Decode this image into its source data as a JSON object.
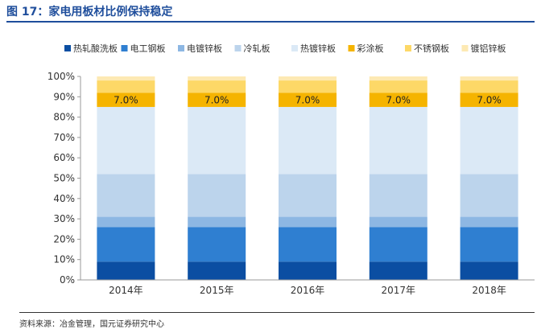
{
  "figure": {
    "title": "图 17：家电用板材比例保持稳定",
    "source": "资料来源：冶金管理，国元证券研究中心"
  },
  "chart_data": {
    "type": "bar",
    "stacked": true,
    "percent_stacked": true,
    "categories": [
      "2014年",
      "2015年",
      "2016年",
      "2017年",
      "2018年"
    ],
    "ylim": [
      0,
      100
    ],
    "yticks": [
      "0%",
      "10%",
      "20%",
      "30%",
      "40%",
      "50%",
      "60%",
      "70%",
      "80%",
      "90%",
      "100%"
    ],
    "legend_position": "top",
    "grid": false,
    "series": [
      {
        "name": "热轧酸洗板",
        "color": "#0b4ea2",
        "values": [
          9,
          9,
          9,
          9,
          9
        ]
      },
      {
        "name": "电工钢板",
        "color": "#2f7fd1",
        "values": [
          17,
          17,
          17,
          17,
          17
        ]
      },
      {
        "name": "电镀锌板",
        "color": "#8db7e3",
        "values": [
          5,
          5,
          5,
          5,
          5
        ]
      },
      {
        "name": "冷轧板",
        "color": "#bcd4ec",
        "values": [
          21,
          21,
          21,
          21,
          21
        ]
      },
      {
        "name": "热镀锌板",
        "color": "#dbe9f6",
        "values": [
          33,
          33,
          33,
          33,
          33
        ]
      },
      {
        "name": "彩涂板",
        "color": "#f5b400",
        "values": [
          7,
          7,
          7,
          7,
          7
        ],
        "labels": [
          "7.0%",
          "7.0%",
          "7.0%",
          "7.0%",
          "7.0%"
        ]
      },
      {
        "name": "不锈钢板",
        "color": "#fdd867",
        "values": [
          6,
          6,
          6,
          6,
          6
        ]
      },
      {
        "name": "镀铝锌板",
        "color": "#fde9b3",
        "values": [
          2,
          2,
          2,
          2,
          2
        ]
      }
    ]
  }
}
